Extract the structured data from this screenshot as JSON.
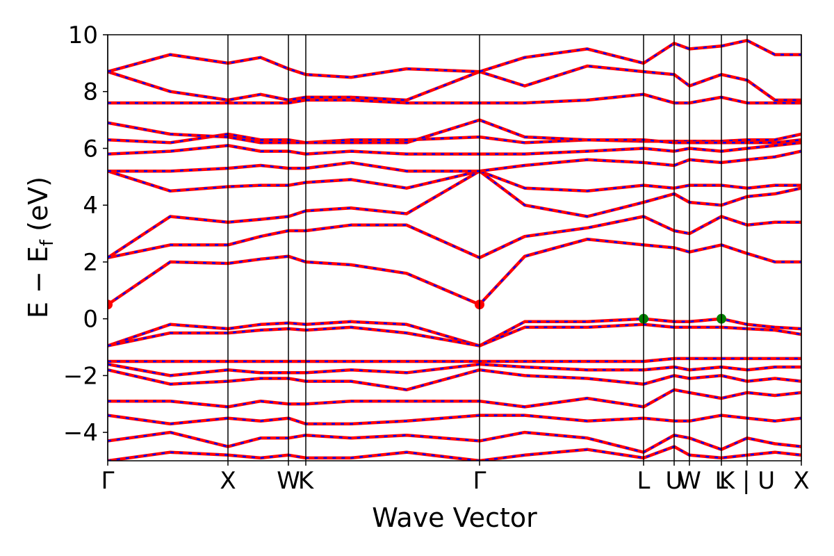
{
  "chart_data": {
    "type": "line",
    "x_label": "Wave Vector",
    "y_label": {
      "main": "E − E",
      "sub": "f",
      "unit": "(eV)"
    },
    "xlim": [
      0,
      9.98
    ],
    "ylim": [
      -5,
      10
    ],
    "xticks": [
      {
        "value": 0,
        "label": "Γ"
      },
      {
        "value": 1.73,
        "label": "X"
      },
      {
        "value": 2.6,
        "label": "W"
      },
      {
        "value": 2.85,
        "label": "K"
      },
      {
        "value": 5.35,
        "label": "Γ"
      },
      {
        "value": 7.71,
        "label": "L"
      },
      {
        "value": 8.15,
        "label": "U"
      },
      {
        "value": 8.37,
        "label": "W"
      },
      {
        "value": 8.83,
        "label": "L"
      },
      {
        "value": 9.2,
        "label": "K | U"
      },
      {
        "value": 9.98,
        "label": "X"
      }
    ],
    "yticks": [
      {
        "value": -4,
        "label": "−4"
      },
      {
        "value": -2,
        "label": "−2"
      },
      0,
      2,
      4,
      6,
      8,
      10
    ],
    "vertical_lines": true,
    "color": "#ff0000",
    "dash_color": "#0000ff",
    "x": [
      0,
      0.9,
      1.73,
      2.2,
      2.6,
      2.85,
      3.5,
      4.3,
      5.35,
      6.0,
      6.9,
      7.71,
      8.15,
      8.37,
      8.83,
      9.2,
      9.6,
      9.98
    ],
    "series": [
      {
        "values": [
          0.5,
          2.0,
          1.95,
          2.1,
          2.2,
          2.0,
          1.9,
          1.6,
          0.5,
          2.2,
          2.8,
          2.6,
          2.5,
          2.35,
          2.6,
          2.3,
          2.0,
          2.0
        ]
      },
      {
        "values": [
          2.15,
          2.6,
          2.6,
          2.9,
          3.1,
          3.1,
          3.3,
          3.3,
          2.15,
          2.9,
          3.2,
          3.6,
          3.1,
          3.0,
          3.6,
          3.3,
          3.4,
          3.4
        ]
      },
      {
        "values": [
          2.15,
          3.6,
          3.4,
          3.5,
          3.6,
          3.8,
          3.9,
          3.7,
          5.2,
          4.0,
          3.6,
          4.1,
          4.4,
          4.1,
          4.0,
          4.3,
          4.4,
          4.6
        ]
      },
      {
        "values": [
          5.2,
          4.5,
          4.65,
          4.7,
          4.7,
          4.8,
          4.9,
          4.6,
          5.2,
          4.6,
          4.5,
          4.7,
          4.6,
          4.7,
          4.7,
          4.6,
          4.7,
          4.7
        ]
      },
      {
        "values": [
          5.2,
          5.2,
          5.3,
          5.4,
          5.3,
          5.3,
          5.5,
          5.2,
          5.2,
          5.4,
          5.6,
          5.5,
          5.4,
          5.6,
          5.5,
          5.6,
          5.7,
          5.9
        ]
      },
      {
        "values": [
          5.8,
          5.9,
          6.1,
          5.9,
          5.9,
          5.8,
          5.9,
          5.8,
          5.8,
          5.8,
          5.9,
          6.0,
          5.9,
          6.0,
          5.9,
          6.0,
          6.1,
          6.2
        ]
      },
      {
        "values": [
          6.3,
          6.2,
          6.5,
          6.3,
          6.3,
          6.2,
          6.3,
          6.3,
          6.4,
          6.2,
          6.3,
          6.25,
          6.25,
          6.25,
          6.25,
          6.3,
          6.3,
          6.5
        ]
      },
      {
        "values": [
          6.9,
          6.5,
          6.4,
          6.2,
          6.2,
          6.2,
          6.2,
          6.2,
          7.0,
          6.4,
          6.3,
          6.3,
          6.2,
          6.2,
          6.2,
          6.2,
          6.2,
          6.3
        ]
      },
      {
        "values": [
          7.6,
          7.6,
          7.6,
          7.6,
          7.6,
          7.7,
          7.7,
          7.6,
          7.6,
          7.6,
          7.7,
          7.9,
          7.6,
          7.6,
          7.8,
          7.6,
          7.6,
          7.6
        ]
      },
      {
        "values": [
          8.7,
          8.0,
          7.7,
          7.9,
          7.7,
          7.8,
          7.8,
          7.7,
          8.7,
          8.2,
          8.9,
          8.7,
          8.6,
          8.2,
          8.6,
          8.4,
          7.7,
          7.7
        ]
      },
      {
        "values": [
          8.7,
          9.3,
          9.0,
          9.2,
          8.8,
          8.6,
          8.5,
          8.8,
          8.7,
          9.2,
          9.5,
          9.0,
          9.7,
          9.5,
          9.6,
          9.8,
          9.3,
          9.3
        ]
      },
      {
        "values": [
          -0.95,
          -0.2,
          -0.35,
          -0.2,
          -0.15,
          -0.2,
          -0.1,
          -0.2,
          -0.95,
          -0.1,
          -0.1,
          0,
          -0.1,
          -0.1,
          0,
          -0.2,
          -0.3,
          -0.35
        ]
      },
      {
        "values": [
          -0.95,
          -0.5,
          -0.5,
          -0.4,
          -0.35,
          -0.4,
          -0.3,
          -0.5,
          -0.95,
          -0.3,
          -0.3,
          -0.2,
          -0.3,
          -0.3,
          -0.3,
          -0.35,
          -0.4,
          -0.55
        ]
      },
      {
        "values": [
          -1.5,
          -1.5,
          -1.5,
          -1.5,
          -1.5,
          -1.5,
          -1.5,
          -1.5,
          -1.5,
          -1.5,
          -1.5,
          -1.5,
          -1.4,
          -1.4,
          -1.4,
          -1.4,
          -1.4,
          -1.4
        ]
      },
      {
        "values": [
          -1.6,
          -2.0,
          -1.8,
          -1.9,
          -1.9,
          -1.9,
          -1.8,
          -1.9,
          -1.6,
          -1.7,
          -1.8,
          -1.8,
          -1.7,
          -1.8,
          -1.7,
          -1.8,
          -1.7,
          -1.7
        ]
      },
      {
        "values": [
          -1.8,
          -2.3,
          -2.2,
          -2.1,
          -2.1,
          -2.2,
          -2.2,
          -2.5,
          -1.8,
          -2.0,
          -2.1,
          -2.3,
          -2.0,
          -2.1,
          -2.0,
          -2.2,
          -2.1,
          -2.2
        ]
      },
      {
        "values": [
          -2.9,
          -2.9,
          -3.1,
          -2.9,
          -3.0,
          -3.0,
          -2.9,
          -2.9,
          -2.9,
          -3.1,
          -2.8,
          -3.1,
          -2.5,
          -2.6,
          -2.8,
          -2.6,
          -2.7,
          -2.6
        ]
      },
      {
        "values": [
          -3.4,
          -3.7,
          -3.5,
          -3.6,
          -3.5,
          -3.7,
          -3.7,
          -3.6,
          -3.4,
          -3.4,
          -3.6,
          -3.5,
          -3.6,
          -3.6,
          -3.4,
          -3.5,
          -3.6,
          -3.5
        ]
      },
      {
        "values": [
          -4.3,
          -4.0,
          -4.5,
          -4.2,
          -4.2,
          -4.1,
          -4.2,
          -4.1,
          -4.3,
          -4.0,
          -4.2,
          -4.7,
          -4.1,
          -4.2,
          -4.6,
          -4.2,
          -4.4,
          -4.5
        ]
      },
      {
        "values": [
          -5.0,
          -4.7,
          -4.8,
          -4.9,
          -4.8,
          -4.9,
          -4.9,
          -4.7,
          -5.0,
          -4.8,
          -4.6,
          -4.9,
          -4.5,
          -4.8,
          -4.9,
          -4.8,
          -4.7,
          -4.8
        ]
      }
    ],
    "points": [
      {
        "x": 0,
        "y": 0.5,
        "color": "#ff0000"
      },
      {
        "x": 5.35,
        "y": 0.5,
        "color": "#ff0000"
      },
      {
        "x": 7.71,
        "y": 0,
        "color": "#008000"
      },
      {
        "x": 8.83,
        "y": 0,
        "color": "#008000"
      }
    ]
  }
}
